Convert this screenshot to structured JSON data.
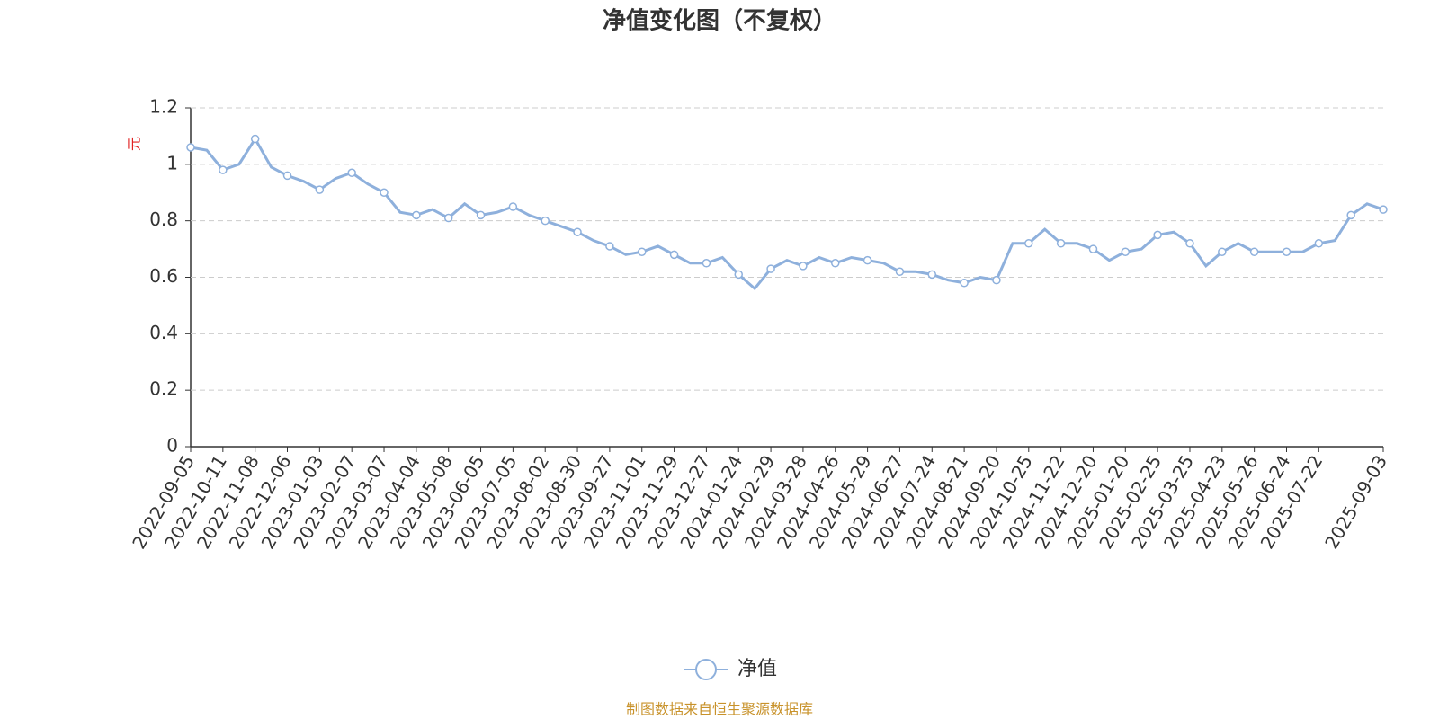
{
  "chart_data": {
    "type": "line",
    "title": "净值变化图（不复权）",
    "y_label": "元",
    "source": "制图数据来自恒生聚源数据库",
    "categories": [
      "2022-09-05",
      null,
      "2022-10-11",
      null,
      "2022-11-08",
      null,
      "2022-12-06",
      null,
      "2023-01-03",
      null,
      "2023-02-07",
      null,
      "2023-03-07",
      null,
      "2023-04-04",
      null,
      "2023-05-08",
      null,
      "2023-06-05",
      null,
      "2023-07-05",
      null,
      "2023-08-02",
      null,
      "2023-08-30",
      null,
      "2023-09-27",
      null,
      "2023-11-01",
      null,
      "2023-11-29",
      null,
      "2023-12-27",
      null,
      "2024-01-24",
      null,
      "2024-02-29",
      null,
      "2024-03-28",
      null,
      "2024-04-26",
      null,
      "2024-05-29",
      null,
      "2024-06-27",
      null,
      "2024-07-24",
      null,
      "2024-08-21",
      null,
      "2024-09-20",
      null,
      "2024-10-25",
      null,
      "2024-11-22",
      null,
      "2024-12-20",
      null,
      "2025-01-20",
      null,
      "2025-02-25",
      null,
      "2025-03-25",
      null,
      "2025-04-23",
      null,
      "2025-05-26",
      null,
      "2025-06-24",
      null,
      "2025-07-22",
      null,
      null,
      null,
      "2025-09-03"
    ],
    "series": [
      {
        "name": "净值",
        "color": "#8eb0dc",
        "values": [
          1.06,
          1.05,
          0.98,
          1.0,
          1.09,
          0.99,
          0.96,
          0.94,
          0.91,
          0.95,
          0.97,
          0.93,
          0.9,
          0.83,
          0.82,
          0.84,
          0.81,
          0.86,
          0.82,
          0.83,
          0.85,
          0.82,
          0.8,
          0.78,
          0.76,
          0.73,
          0.71,
          0.68,
          0.69,
          0.71,
          0.68,
          0.65,
          0.65,
          0.67,
          0.61,
          0.56,
          0.63,
          0.66,
          0.64,
          0.67,
          0.65,
          0.67,
          0.66,
          0.65,
          0.62,
          0.62,
          0.61,
          0.59,
          0.58,
          0.6,
          0.59,
          0.72,
          0.72,
          0.77,
          0.72,
          0.72,
          0.7,
          0.66,
          0.69,
          0.7,
          0.75,
          0.76,
          0.72,
          0.64,
          0.69,
          0.72,
          0.69,
          0.69,
          0.69,
          0.69,
          0.72,
          0.73,
          0.82,
          0.86,
          0.84
        ]
      }
    ],
    "ylim": [
      0,
      1.2
    ],
    "yticks": [
      0,
      0.2,
      0.4,
      0.6,
      0.8,
      1,
      1.2
    ],
    "grid": true
  }
}
